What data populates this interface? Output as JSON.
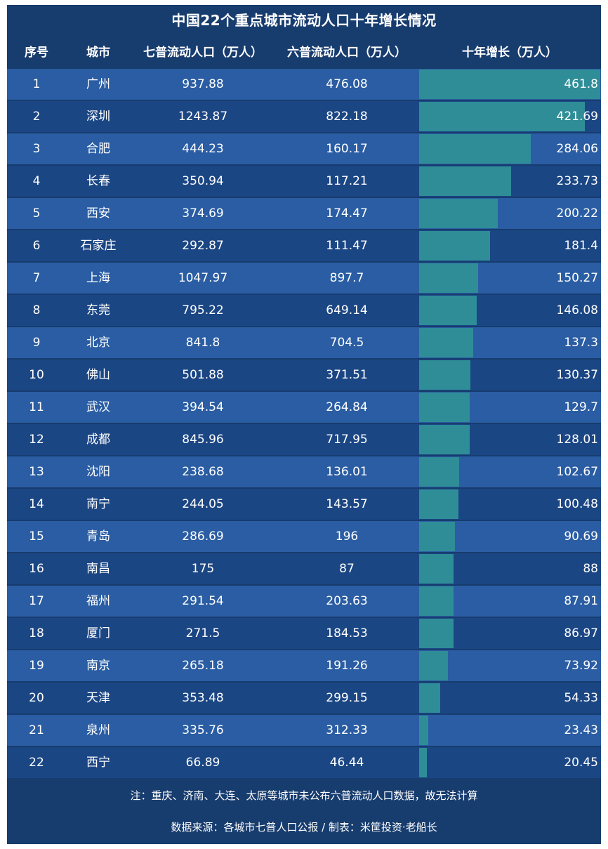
{
  "title": "中国22个重点城市流动人口十年增长情况",
  "headers": {
    "index": "序号",
    "city": "城市",
    "census7": "七普流动人口（万人）",
    "census6": "六普流动人口（万人）",
    "growth": "十年增长（万人）"
  },
  "note": "注：重庆、济南、大连、太原等城市未公布六普流动人口数据，故无法计算",
  "source": "数据来源：各城市七普人口公报 / 制表：米筐投资·老船长",
  "colors": {
    "background": "#173c6e",
    "row_light": "#2a5da3",
    "row_dark": "#1b4684",
    "bar": "#2f8d98"
  },
  "chart_data": {
    "type": "table",
    "bar_column": "growth",
    "rows": [
      {
        "index": "1",
        "city": "广州",
        "census7": "937.88",
        "census6": "476.08",
        "growth": "461.8"
      },
      {
        "index": "2",
        "city": "深圳",
        "census7": "1243.87",
        "census6": "822.18",
        "growth": "421.69"
      },
      {
        "index": "3",
        "city": "合肥",
        "census7": "444.23",
        "census6": "160.17",
        "growth": "284.06"
      },
      {
        "index": "4",
        "city": "长春",
        "census7": "350.94",
        "census6": "117.21",
        "growth": "233.73"
      },
      {
        "index": "5",
        "city": "西安",
        "census7": "374.69",
        "census6": "174.47",
        "growth": "200.22"
      },
      {
        "index": "6",
        "city": "石家庄",
        "census7": "292.87",
        "census6": "111.47",
        "growth": "181.4"
      },
      {
        "index": "7",
        "city": "上海",
        "census7": "1047.97",
        "census6": "897.7",
        "growth": "150.27"
      },
      {
        "index": "8",
        "city": "东莞",
        "census7": "795.22",
        "census6": "649.14",
        "growth": "146.08"
      },
      {
        "index": "9",
        "city": "北京",
        "census7": "841.8",
        "census6": "704.5",
        "growth": "137.3"
      },
      {
        "index": "10",
        "city": "佛山",
        "census7": "501.88",
        "census6": "371.51",
        "growth": "130.37"
      },
      {
        "index": "11",
        "city": "武汉",
        "census7": "394.54",
        "census6": "264.84",
        "growth": "129.7"
      },
      {
        "index": "12",
        "city": "成都",
        "census7": "845.96",
        "census6": "717.95",
        "growth": "128.01"
      },
      {
        "index": "13",
        "city": "沈阳",
        "census7": "238.68",
        "census6": "136.01",
        "growth": "102.67"
      },
      {
        "index": "14",
        "city": "南宁",
        "census7": "244.05",
        "census6": "143.57",
        "growth": "100.48"
      },
      {
        "index": "15",
        "city": "青岛",
        "census7": "286.69",
        "census6": "196",
        "growth": "90.69"
      },
      {
        "index": "16",
        "city": "南昌",
        "census7": "175",
        "census6": "87",
        "growth": "88"
      },
      {
        "index": "17",
        "city": "福州",
        "census7": "291.54",
        "census6": "203.63",
        "growth": "87.91"
      },
      {
        "index": "18",
        "city": "厦门",
        "census7": "271.5",
        "census6": "184.53",
        "growth": "86.97"
      },
      {
        "index": "19",
        "city": "南京",
        "census7": "265.18",
        "census6": "191.26",
        "growth": "73.92"
      },
      {
        "index": "20",
        "city": "天津",
        "census7": "353.48",
        "census6": "299.15",
        "growth": "54.33"
      },
      {
        "index": "21",
        "city": "泉州",
        "census7": "335.76",
        "census6": "312.33",
        "growth": "23.43"
      },
      {
        "index": "22",
        "city": "西宁",
        "census7": "66.89",
        "census6": "46.44",
        "growth": "20.45"
      }
    ]
  }
}
